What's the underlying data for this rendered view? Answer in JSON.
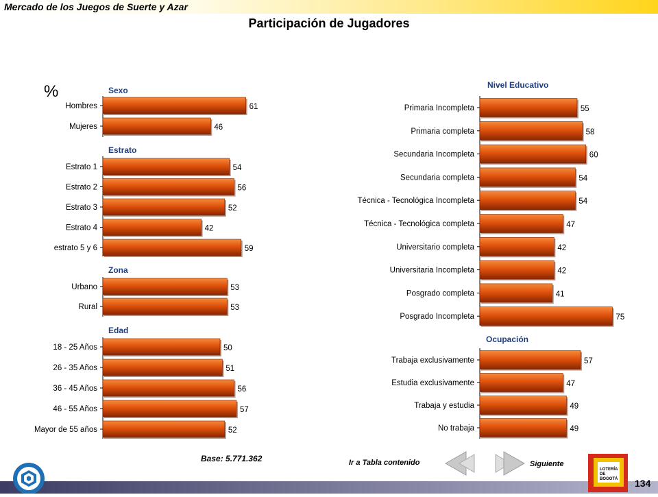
{
  "header": {
    "doc_title": "Mercado de los Juegos de Suerte y Azar",
    "page_title": "Participación de Jugadores"
  },
  "percent_symbol": "%",
  "chart_data": [
    {
      "type": "bar",
      "orientation": "horizontal",
      "xlim": [
        0,
        75
      ],
      "grid": false,
      "bar_color": "#e0520c",
      "groups": [
        {
          "name": "Sexo",
          "categories": [
            "Hombres",
            "Mujeres"
          ],
          "values": [
            61,
            46
          ]
        },
        {
          "name": "Estrato",
          "categories": [
            "Estrato 1",
            "Estrato 2",
            "Estrato 3",
            "Estrato 4",
            "estrato 5 y 6"
          ],
          "values": [
            54,
            56,
            52,
            42,
            59
          ]
        },
        {
          "name": "Zona",
          "categories": [
            "Urbano",
            "Rural"
          ],
          "values": [
            53,
            53
          ]
        },
        {
          "name": "Edad",
          "categories": [
            "18 - 25 Años",
            "26 - 35 Años",
            "36 - 45 Años",
            "46 - 55 Años",
            "Mayor de 55 años"
          ],
          "values": [
            50,
            51,
            56,
            57,
            52
          ]
        }
      ]
    },
    {
      "type": "bar",
      "orientation": "horizontal",
      "xlim": [
        0,
        75
      ],
      "grid": false,
      "bar_color": "#e0520c",
      "groups": [
        {
          "name": "Nivel Educativo",
          "categories": [
            "Primaria Incompleta",
            "Primaria completa",
            "Secundaria Incompleta",
            "Secundaria completa",
            "Técnica - Tecnológica Incompleta",
            "Técnica - Tecnológica completa",
            "Universitario completa",
            "Universitaria Incompleta",
            "Posgrado completa",
            "Posgrado Incompleta"
          ],
          "values": [
            55,
            58,
            60,
            54,
            54,
            47,
            42,
            42,
            41,
            75
          ]
        },
        {
          "name": "Ocupación",
          "categories": [
            "Trabaja exclusivamente",
            "Estudia exclusivamente",
            "Trabaja y estudia",
            "No trabaja"
          ],
          "values": [
            57,
            47,
            49,
            49
          ]
        }
      ]
    }
  ],
  "base_text": "Base: 5.771.362",
  "nav": {
    "toc_label": "Ir a Tabla contenido",
    "next_label": "Siguiente"
  },
  "logo_text": [
    "LOTERÍA",
    "DE",
    "BOGOTÁ"
  ],
  "page_number": "134"
}
